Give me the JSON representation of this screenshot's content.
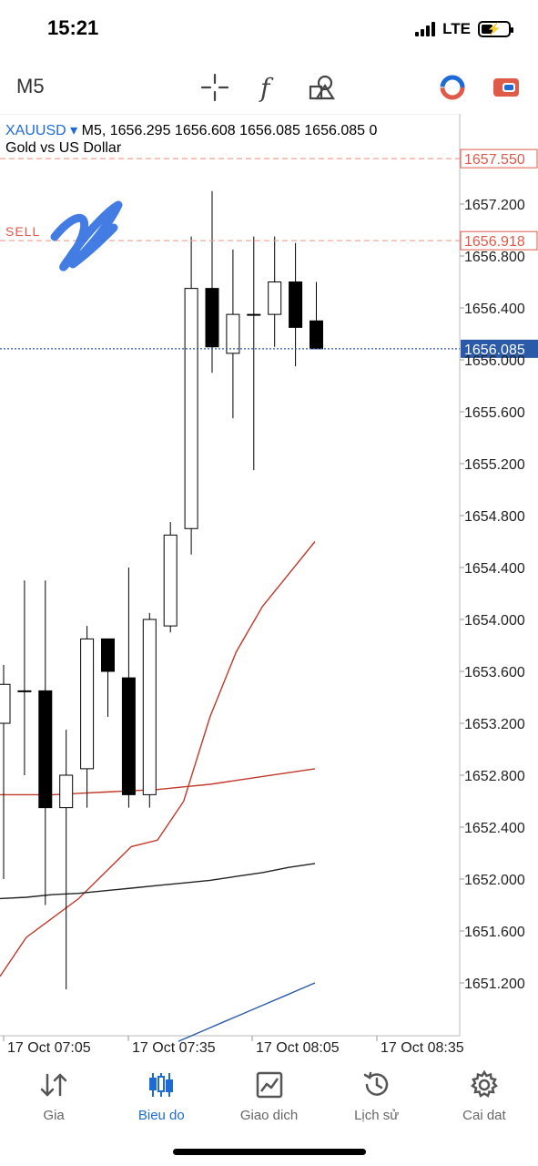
{
  "status_bar": {
    "time": "15:21",
    "network": "LTE"
  },
  "toolbar": {
    "timeframe": "M5",
    "icons": [
      "crosshair-icon",
      "function-icon",
      "objects-icon",
      "trade-mode-icon",
      "toggle-icon"
    ]
  },
  "chart": {
    "symbol": "XAUUSD",
    "dropdown_glyph": "▾",
    "ohlc_line": "M5, 1656.295 1656.608 1656.085 1656.085 0",
    "description": "Gold vs US Dollar",
    "sell_label": "SELL",
    "colors": {
      "accent": "#1e6bd6",
      "sell": "#e05a4a",
      "bid": "#2a5aa8"
    }
  },
  "chart_data": {
    "type": "candlestick",
    "y_ticks": [
      "1657.200",
      "1656.800",
      "1656.400",
      "1656.000",
      "1655.600",
      "1655.200",
      "1654.800",
      "1654.400",
      "1654.000",
      "1653.600",
      "1653.200",
      "1652.800",
      "1652.400",
      "1652.000",
      "1651.600",
      "1651.200"
    ],
    "x_ticks": [
      "17 Oct 07:05",
      "17 Oct 07:35",
      "17 Oct 08:05",
      "17 Oct 08:35"
    ],
    "price_lines": [
      {
        "label": "1657.550",
        "value": 1657.55,
        "kind": "sell-level"
      },
      {
        "label": "1656.918",
        "value": 1656.918,
        "kind": "sell-entry"
      },
      {
        "label": "1656.085",
        "value": 1656.085,
        "kind": "bid"
      }
    ],
    "candles": [
      {
        "o": 1653.2,
        "h": 1653.65,
        "l": 1652.0,
        "c": 1653.5
      },
      {
        "o": 1653.45,
        "h": 1654.3,
        "l": 1652.8,
        "c": 1653.45
      },
      {
        "o": 1653.45,
        "h": 1654.3,
        "l": 1651.8,
        "c": 1652.55
      },
      {
        "o": 1652.55,
        "h": 1653.15,
        "l": 1651.15,
        "c": 1652.8
      },
      {
        "o": 1652.85,
        "h": 1653.95,
        "l": 1652.55,
        "c": 1653.85
      },
      {
        "o": 1653.85,
        "h": 1653.85,
        "l": 1653.25,
        "c": 1653.6
      },
      {
        "o": 1653.55,
        "h": 1654.4,
        "l": 1652.55,
        "c": 1652.65
      },
      {
        "o": 1652.65,
        "h": 1654.05,
        "l": 1652.55,
        "c": 1654.0
      },
      {
        "o": 1653.95,
        "h": 1654.75,
        "l": 1653.9,
        "c": 1654.65
      },
      {
        "o": 1654.7,
        "h": 1656.95,
        "l": 1654.5,
        "c": 1656.55
      },
      {
        "o": 1656.55,
        "h": 1657.3,
        "l": 1655.9,
        "c": 1656.1
      },
      {
        "o": 1656.05,
        "h": 1656.85,
        "l": 1655.55,
        "c": 1656.35
      },
      {
        "o": 1656.35,
        "h": 1656.95,
        "l": 1655.15,
        "c": 1656.35
      },
      {
        "o": 1656.35,
        "h": 1656.95,
        "l": 1656.1,
        "c": 1656.6
      },
      {
        "o": 1656.6,
        "h": 1656.9,
        "l": 1655.95,
        "c": 1656.25
      },
      {
        "o": 1656.3,
        "h": 1656.6,
        "l": 1656.1,
        "c": 1656.085
      }
    ],
    "indicators": [
      {
        "color": "#c0392b",
        "points": [
          1651.25,
          1651.55,
          1651.7,
          1651.85,
          1652.05,
          1652.25,
          1652.3,
          1652.6,
          1653.25,
          1653.75,
          1654.1,
          1654.35,
          1654.6
        ]
      },
      {
        "color": "#c0392b",
        "points": [
          1652.65,
          1652.65,
          1652.65,
          1652.66,
          1652.67,
          1652.68,
          1652.69,
          1652.71,
          1652.73,
          1652.76,
          1652.79,
          1652.82,
          1652.85
        ]
      },
      {
        "color": "#222222",
        "points": [
          1651.85,
          1651.86,
          1651.88,
          1651.89,
          1651.91,
          1651.93,
          1651.95,
          1651.97,
          1651.99,
          1652.02,
          1652.05,
          1652.09,
          1652.12
        ]
      },
      {
        "color": "#2a5aa8",
        "points": [
          1650.75,
          1650.8,
          1650.85,
          1650.9,
          1650.95,
          1651.0,
          1651.05,
          1651.1,
          1651.15,
          1651.2
        ]
      }
    ]
  },
  "bottom_nav": {
    "items": [
      {
        "label": "Gia",
        "icon": "quotes-icon",
        "active": false
      },
      {
        "label": "Bieu do",
        "icon": "chart-icon",
        "active": true
      },
      {
        "label": "Giao dich",
        "icon": "trade-icon",
        "active": false
      },
      {
        "label": "Lịch sử",
        "icon": "history-icon",
        "active": false
      },
      {
        "label": "Cai dat",
        "icon": "settings-icon",
        "active": false
      }
    ]
  }
}
